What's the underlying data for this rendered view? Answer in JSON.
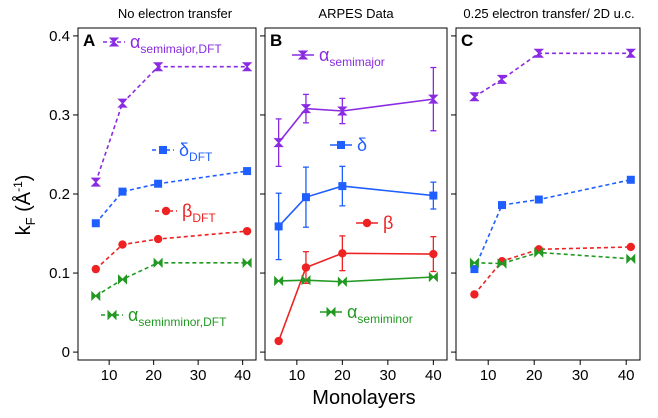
{
  "figure": {
    "ylabel_main": "k",
    "ylabel_sub": "F",
    "ylabel_unit_pre": " (Å",
    "ylabel_unit_sup": "-1",
    "ylabel_unit_post": ")",
    "xlabel": "Monolayers"
  },
  "chart_data": [
    {
      "type": "line",
      "panel_letter": "A",
      "title": "No electron transfer",
      "xlabel": "Monolayers",
      "ylabel": "kF (Å-1)",
      "xlim": [
        3,
        43
      ],
      "ylim": [
        -0.01,
        0.41
      ],
      "xticks": [
        10,
        20,
        30,
        40
      ],
      "yticks": [
        0,
        0.1,
        0.2,
        0.3,
        0.4
      ],
      "ytick_labels": [
        "0",
        "0.1",
        "0.2",
        "0.3",
        "0.4"
      ],
      "grid": false,
      "series": [
        {
          "name_main": "α",
          "name_sub": "semimajor,DFT",
          "color": "#8a2be2",
          "style": "dashed",
          "marker": "hourglass",
          "x": [
            7,
            13,
            21,
            41
          ],
          "y": [
            0.215,
            0.315,
            0.361,
            0.361
          ]
        },
        {
          "name_main": "δ",
          "name_sub": "DFT",
          "color": "#1f5fff",
          "style": "dashed",
          "marker": "square",
          "x": [
            7,
            13,
            21,
            41
          ],
          "y": [
            0.163,
            0.203,
            0.213,
            0.229
          ]
        },
        {
          "name_main": "β",
          "name_sub": "DFT",
          "color": "#ee2222",
          "style": "dashed",
          "marker": "circle",
          "x": [
            7,
            13,
            21,
            41
          ],
          "y": [
            0.105,
            0.136,
            0.143,
            0.153
          ]
        },
        {
          "name_main": "α",
          "name_sub": "seminminor,DFT",
          "color": "#229922",
          "style": "dashed",
          "marker": "bowtie",
          "x": [
            7,
            13,
            21,
            41
          ],
          "y": [
            0.071,
            0.092,
            0.113,
            0.113
          ]
        }
      ]
    },
    {
      "type": "line",
      "panel_letter": "B",
      "title": "ARPES Data",
      "xlim": [
        3,
        43
      ],
      "ylim": [
        -0.01,
        0.41
      ],
      "xticks": [
        10,
        20,
        30,
        40
      ],
      "grid": false,
      "series": [
        {
          "name_main": "α",
          "name_sub": "semimajor",
          "color": "#8a2be2",
          "style": "solid",
          "marker": "hourglass",
          "x": [
            6,
            12,
            20,
            40
          ],
          "y": [
            0.265,
            0.308,
            0.305,
            0.32
          ],
          "err": [
            0.03,
            0.018,
            0.016,
            0.04
          ]
        },
        {
          "name_main": "δ",
          "name_sub": "",
          "color": "#1f5fff",
          "style": "solid",
          "marker": "square",
          "x": [
            6,
            12,
            20,
            40
          ],
          "y": [
            0.159,
            0.196,
            0.21,
            0.198
          ],
          "err": [
            0.042,
            0.038,
            0.025,
            0.017
          ]
        },
        {
          "name_main": "β",
          "name_sub": "",
          "color": "#ee2222",
          "style": "solid",
          "marker": "circle",
          "x": [
            6,
            12,
            20,
            40
          ],
          "y": [
            0.014,
            0.107,
            0.125,
            0.124
          ],
          "err": [
            0,
            0.02,
            0.022,
            0.022
          ]
        },
        {
          "name_main": "α",
          "name_sub": "semiminor",
          "color": "#229922",
          "style": "solid",
          "marker": "bowtie",
          "x": [
            6,
            12,
            20,
            40
          ],
          "y": [
            0.09,
            0.091,
            0.089,
            0.095
          ],
          "err": [
            0,
            0,
            0,
            0
          ]
        }
      ]
    },
    {
      "type": "line",
      "panel_letter": "C",
      "title": "0.25 electron transfer/ 2D u.c.",
      "xlim": [
        3,
        43
      ],
      "ylim": [
        -0.01,
        0.41
      ],
      "xticks": [
        10,
        20,
        30,
        40
      ],
      "grid": false,
      "series": [
        {
          "name_main": "α",
          "name_sub": "semimajor,DFT",
          "color": "#8a2be2",
          "style": "dashed",
          "marker": "hourglass",
          "x": [
            7,
            13,
            21,
            41
          ],
          "y": [
            0.323,
            0.345,
            0.378,
            0.378
          ]
        },
        {
          "name_main": "δ",
          "name_sub": "DFT",
          "color": "#1f5fff",
          "style": "dashed",
          "marker": "square",
          "x": [
            7,
            13,
            21,
            41
          ],
          "y": [
            0.105,
            0.186,
            0.193,
            0.218
          ]
        },
        {
          "name_main": "β",
          "name_sub": "DFT",
          "color": "#ee2222",
          "style": "dashed",
          "marker": "circle",
          "x": [
            7,
            13,
            21,
            41
          ],
          "y": [
            0.073,
            0.115,
            0.13,
            0.133
          ]
        },
        {
          "name_main": "α",
          "name_sub": "seminminor,DFT",
          "color": "#229922",
          "style": "dashed",
          "marker": "bowtie",
          "x": [
            7,
            13,
            21,
            41
          ],
          "y": [
            0.113,
            0.112,
            0.126,
            0.118
          ]
        }
      ]
    }
  ]
}
